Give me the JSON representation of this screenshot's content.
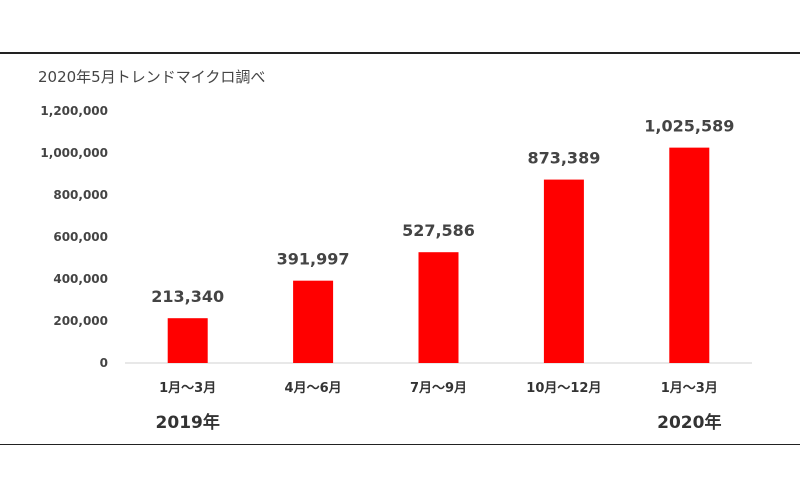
{
  "source_note": "2020年5月トレンドマイクロ調べ",
  "bar_color": "#ff0000",
  "chart_data": {
    "type": "bar",
    "categories": [
      "1月～3月",
      "4月～6月",
      "7月～9月",
      "10月～12月",
      "1月～3月"
    ],
    "values": [
      213340,
      391997,
      527586,
      873389,
      1025589
    ],
    "value_labels": [
      "213,340",
      "391,997",
      "527,586",
      "873,389",
      "1,025,589"
    ],
    "year_labels": [
      "2019年",
      "2020年"
    ],
    "ylim": [
      0,
      1200000
    ],
    "y_ticks": [
      0,
      200000,
      400000,
      600000,
      800000,
      1000000,
      1200000
    ],
    "y_tick_labels": [
      "0",
      "200,000",
      "400,000",
      "600,000",
      "800,000",
      "1,000,000",
      "1,200,000"
    ],
    "grid": false,
    "legend": "none"
  }
}
